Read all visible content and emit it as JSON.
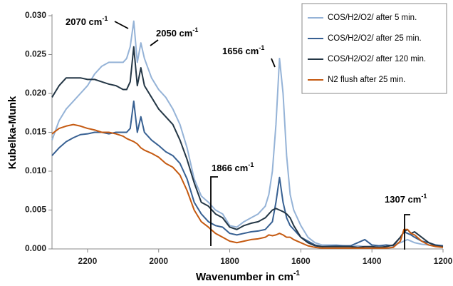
{
  "chart_data": {
    "type": "line",
    "y_label": "Kubelka-Munk",
    "x_label": "Wavenumber in cm",
    "x_label_sup": "-1",
    "x": [
      2300,
      2280,
      2260,
      2240,
      2220,
      2200,
      2180,
      2160,
      2140,
      2120,
      2100,
      2090,
      2080,
      2070,
      2060,
      2050,
      2040,
      2020,
      2000,
      1980,
      1960,
      1940,
      1920,
      1900,
      1880,
      1860,
      1840,
      1820,
      1800,
      1780,
      1760,
      1740,
      1720,
      1700,
      1690,
      1680,
      1670,
      1660,
      1650,
      1640,
      1630,
      1620,
      1600,
      1580,
      1560,
      1540,
      1500,
      1460,
      1440,
      1420,
      1400,
      1380,
      1360,
      1340,
      1320,
      1310,
      1300,
      1290,
      1280,
      1260,
      1240,
      1220,
      1200
    ],
    "series": [
      {
        "name": "COS/H2/O2/ after 5 min.",
        "color": "#95b3d7",
        "values": [
          0.014,
          0.0165,
          0.018,
          0.019,
          0.02,
          0.021,
          0.0225,
          0.0235,
          0.024,
          0.024,
          0.024,
          0.0245,
          0.026,
          0.0293,
          0.024,
          0.0265,
          0.0245,
          0.022,
          0.0205,
          0.0195,
          0.018,
          0.016,
          0.013,
          0.009,
          0.0068,
          0.006,
          0.005,
          0.0045,
          0.003,
          0.0028,
          0.0035,
          0.004,
          0.0045,
          0.0055,
          0.007,
          0.01,
          0.016,
          0.0245,
          0.02,
          0.012,
          0.007,
          0.005,
          0.003,
          0.0015,
          0.0008,
          0.0005,
          0.0005,
          0.0003,
          0.0004,
          0.0003,
          0.0003,
          0.0002,
          0.0003,
          0.0005,
          0.0008,
          0.001,
          0.0012,
          0.001,
          0.0008,
          0.0006,
          0.0005,
          0.0004,
          0.0003
        ]
      },
      {
        "name": "COS/H2/O2/ after 25 min.",
        "color": "#376092",
        "values": [
          0.012,
          0.013,
          0.0138,
          0.0143,
          0.0147,
          0.0148,
          0.015,
          0.015,
          0.0148,
          0.015,
          0.015,
          0.015,
          0.0155,
          0.019,
          0.015,
          0.017,
          0.015,
          0.014,
          0.0133,
          0.0125,
          0.012,
          0.011,
          0.009,
          0.006,
          0.0045,
          0.0035,
          0.003,
          0.0028,
          0.002,
          0.0018,
          0.002,
          0.0022,
          0.0023,
          0.0025,
          0.003,
          0.0035,
          0.006,
          0.0092,
          0.006,
          0.004,
          0.003,
          0.0025,
          0.0015,
          0.001,
          0.0005,
          0.0003,
          0.0004,
          0.0004,
          0.0008,
          0.0012,
          0.0005,
          0.0004,
          0.0005,
          0.0004,
          0.0015,
          0.0022,
          0.002,
          0.0018,
          0.0015,
          0.001,
          0.0008,
          0.0005,
          0.0004
        ]
      },
      {
        "name": "COS/H2/O2/ after 120 min.",
        "color": "#243746",
        "values": [
          0.0195,
          0.021,
          0.022,
          0.022,
          0.022,
          0.0218,
          0.0218,
          0.0215,
          0.0212,
          0.021,
          0.0205,
          0.0205,
          0.0215,
          0.026,
          0.021,
          0.0233,
          0.021,
          0.0195,
          0.018,
          0.017,
          0.016,
          0.014,
          0.0115,
          0.0085,
          0.006,
          0.0055,
          0.0045,
          0.004,
          0.0028,
          0.0025,
          0.003,
          0.0033,
          0.0035,
          0.004,
          0.0045,
          0.005,
          0.0052,
          0.005,
          0.0048,
          0.0045,
          0.004,
          0.003,
          0.0015,
          0.0008,
          0.0004,
          0.0003,
          0.0003,
          0.0003,
          0.0002,
          0.0003,
          0.0003,
          0.0002,
          0.0003,
          0.0005,
          0.0015,
          0.0022,
          0.0025,
          0.002,
          0.0022,
          0.0015,
          0.0008,
          0.0004,
          0.0003
        ]
      },
      {
        "name": "N2 flush after 25 min.",
        "color": "#c55a11",
        "values": [
          0.0148,
          0.0155,
          0.0158,
          0.016,
          0.0158,
          0.0155,
          0.0153,
          0.015,
          0.015,
          0.0148,
          0.0145,
          0.0142,
          0.014,
          0.0138,
          0.0135,
          0.013,
          0.0127,
          0.0123,
          0.0118,
          0.011,
          0.0105,
          0.0095,
          0.0075,
          0.005,
          0.0035,
          0.0028,
          0.002,
          0.0015,
          0.001,
          0.0008,
          0.001,
          0.0012,
          0.0013,
          0.0015,
          0.0018,
          0.0017,
          0.0018,
          0.002,
          0.0018,
          0.0015,
          0.0015,
          0.0012,
          0.0008,
          0.0004,
          0.0002,
          0.0001,
          0.0001,
          0.0001,
          0.0001,
          0.0001,
          0.0001,
          0.0001,
          0.0001,
          0.0002,
          0.001,
          0.0025,
          0.0025,
          0.002,
          0.0018,
          0.001,
          0.0005,
          0.0003,
          0.0002
        ]
      }
    ],
    "xlim": [
      2300,
      1200
    ],
    "xticks": [
      2200,
      2000,
      1800,
      1600,
      1400,
      1200
    ],
    "ylim": [
      0,
      0.03
    ],
    "yticks": [
      {
        "value": 0,
        "label": "0.000"
      },
      {
        "value": 0.005,
        "label": "0.005"
      },
      {
        "value": 0.01,
        "label": "0.010"
      },
      {
        "value": 0.015,
        "label": "0.015"
      },
      {
        "value": 0.02,
        "label": "0.020"
      },
      {
        "value": 0.025,
        "label": "0.025"
      },
      {
        "value": 0.03,
        "label": "0.030"
      }
    ],
    "annotations": [
      {
        "text": "2070 cm",
        "sup": "-1"
      },
      {
        "text": "2050 cm",
        "sup": "-1"
      },
      {
        "text": "1656 cm",
        "sup": "-1"
      },
      {
        "text": "1866 cm",
        "sup": "-1"
      },
      {
        "text": "1307 cm",
        "sup": "-1"
      }
    ],
    "legend": "upper right"
  }
}
